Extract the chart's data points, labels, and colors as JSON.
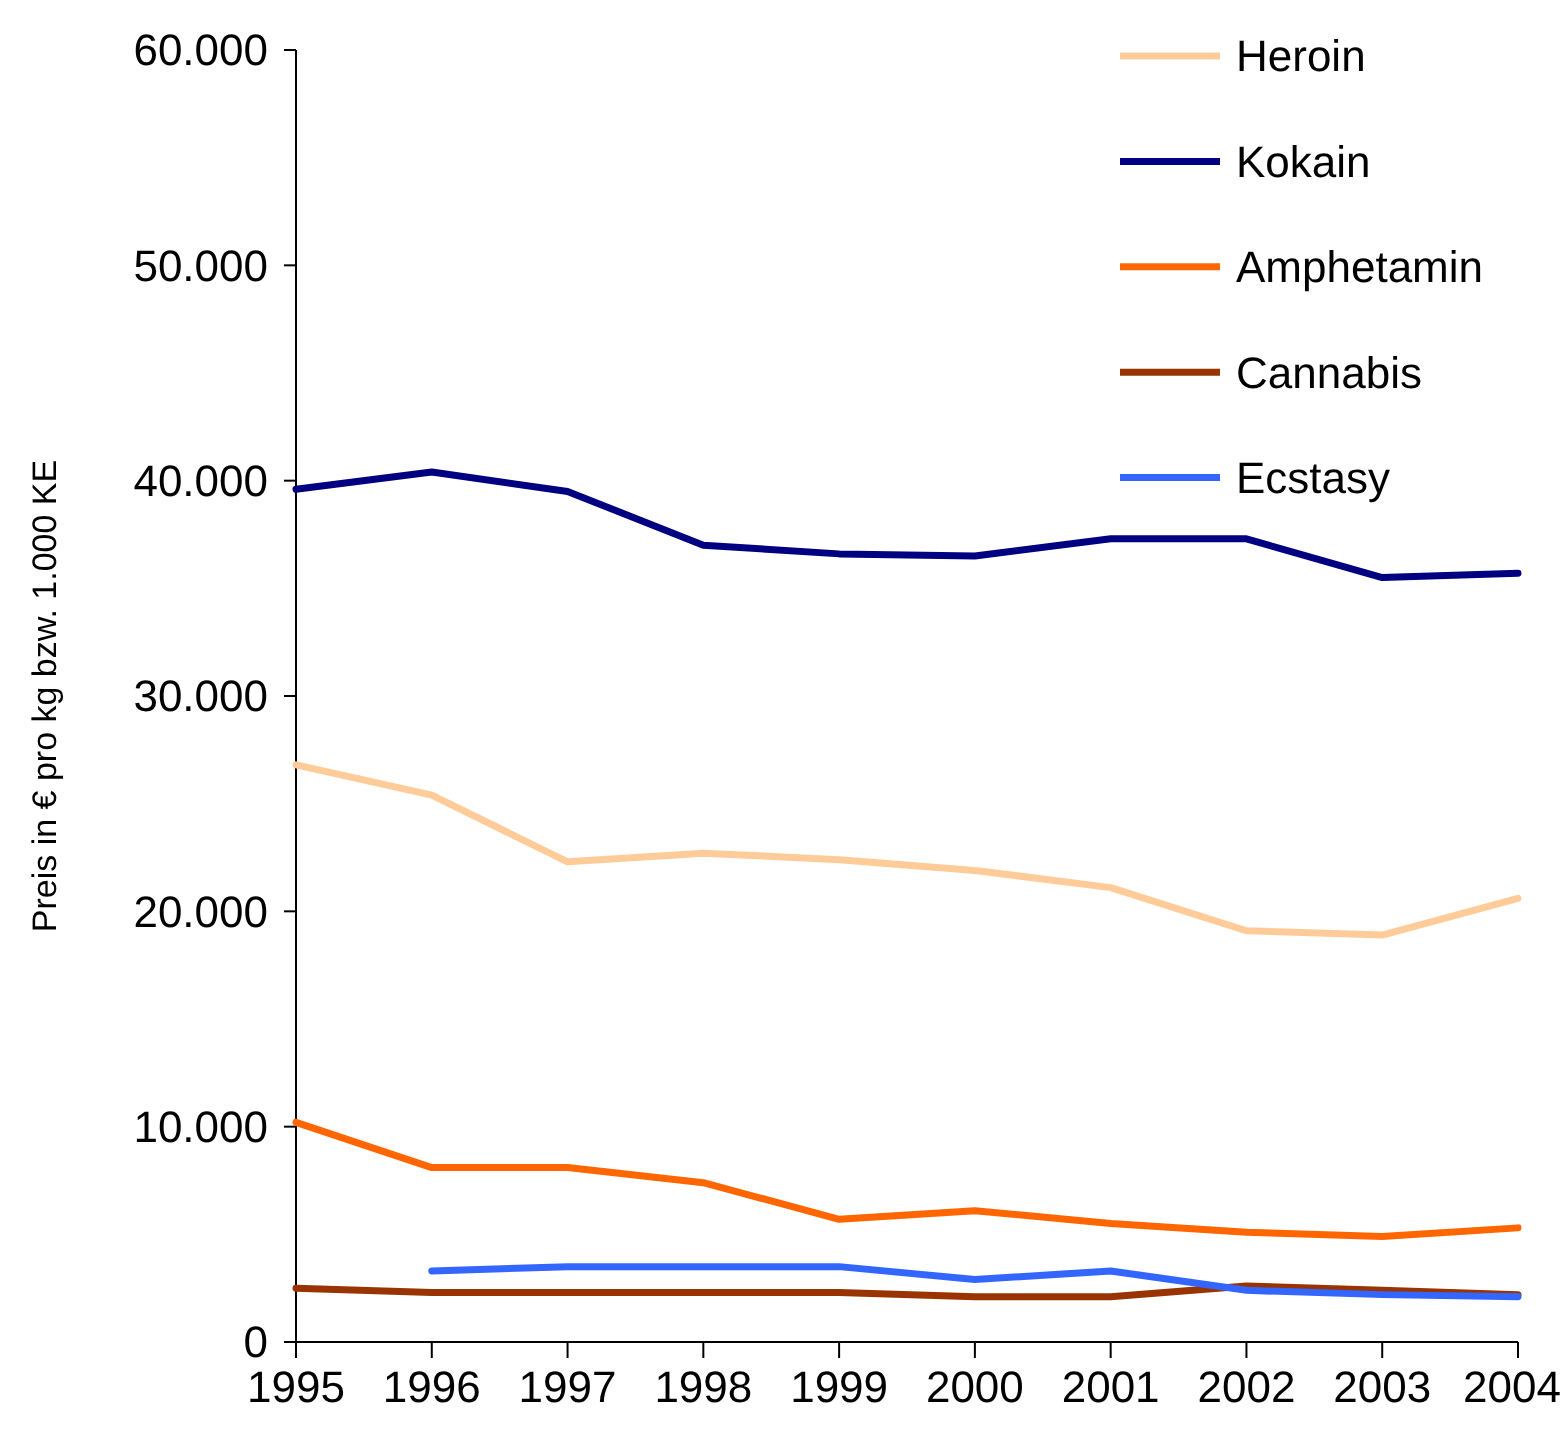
{
  "chart_data": {
    "type": "line",
    "ylabel": "Preis in € pro kg bzw. 1.000 KE",
    "categories": [
      "1995",
      "1996",
      "1997",
      "1998",
      "1999",
      "2000",
      "2001",
      "2002",
      "2003",
      "2004"
    ],
    "ylim": [
      0,
      60000
    ],
    "yticks": [
      {
        "value": 0,
        "label": "0"
      },
      {
        "value": 10000,
        "label": "10.000"
      },
      {
        "value": 20000,
        "label": "20.000"
      },
      {
        "value": 30000,
        "label": "30.000"
      },
      {
        "value": 40000,
        "label": "40.000"
      },
      {
        "value": 50000,
        "label": "50.000"
      },
      {
        "value": 60000,
        "label": "60.000"
      }
    ],
    "series": [
      {
        "name": "Heroin",
        "color": "#ffcc99",
        "values": [
          26800,
          25400,
          22300,
          22700,
          22400,
          21900,
          21100,
          19100,
          18900,
          20600
        ]
      },
      {
        "name": "Kokain",
        "color": "#000080",
        "values": [
          39600,
          40400,
          39500,
          37000,
          36600,
          36500,
          37300,
          37300,
          35500,
          35700
        ]
      },
      {
        "name": "Amphetamin",
        "color": "#ff6600",
        "values": [
          10200,
          8100,
          8100,
          7400,
          5700,
          6100,
          5500,
          5100,
          4900,
          5300
        ]
      },
      {
        "name": "Cannabis",
        "color": "#993300",
        "values": [
          2500,
          2300,
          2300,
          2300,
          2300,
          2100,
          2100,
          2600,
          2400,
          2200
        ]
      },
      {
        "name": "Ecstasy",
        "color": "#3366ff",
        "values": [
          null,
          3300,
          3500,
          3500,
          3500,
          2900,
          3300,
          2400,
          2200,
          2100
        ]
      }
    ],
    "legend": "top right",
    "grid": false,
    "marker": "none",
    "line_style": "solid"
  }
}
